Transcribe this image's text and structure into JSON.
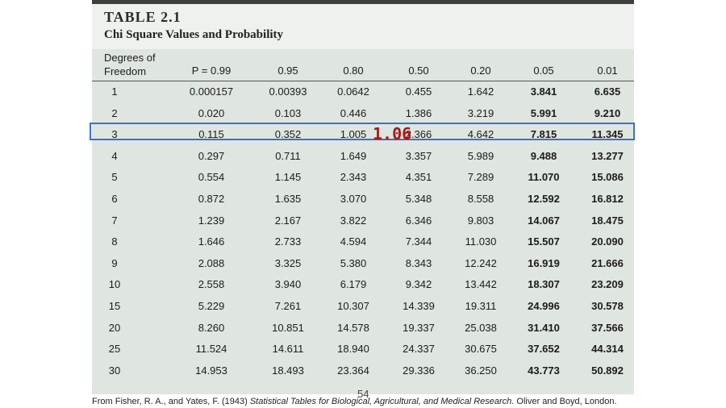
{
  "table": {
    "label": "TABLE 2.1",
    "caption": "Chi Square Values and Probability",
    "header": {
      "dof_line1": "Degrees of",
      "dof_line2": "Freedom",
      "probabilities": [
        "P = 0.99",
        "0.95",
        "0.80",
        "0.50",
        "0.20",
        "0.05",
        "0.01"
      ]
    },
    "rows": [
      {
        "df": "1",
        "values": [
          "0.000157",
          "0.00393",
          "0.0642",
          "0.455",
          "1.642",
          "3.841",
          "6.635"
        ]
      },
      {
        "df": "2",
        "values": [
          "0.020",
          "0.103",
          "0.446",
          "1.386",
          "3.219",
          "5.991",
          "9.210"
        ]
      },
      {
        "df": "3",
        "values": [
          "0.115",
          "0.352",
          "1.005",
          "2.366",
          "4.642",
          "7.815",
          "11.345"
        ]
      },
      {
        "df": "4",
        "values": [
          "0.297",
          "0.711",
          "1.649",
          "3.357",
          "5.989",
          "9.488",
          "13.277"
        ]
      },
      {
        "df": "5",
        "values": [
          "0.554",
          "1.145",
          "2.343",
          "4.351",
          "7.289",
          "11.070",
          "15.086"
        ]
      },
      {
        "df": "6",
        "values": [
          "0.872",
          "1.635",
          "3.070",
          "5.348",
          "8.558",
          "12.592",
          "16.812"
        ]
      },
      {
        "df": "7",
        "values": [
          "1.239",
          "2.167",
          "3.822",
          "6.346",
          "9.803",
          "14.067",
          "18.475"
        ]
      },
      {
        "df": "8",
        "values": [
          "1.646",
          "2.733",
          "4.594",
          "7.344",
          "11.030",
          "15.507",
          "20.090"
        ]
      },
      {
        "df": "9",
        "values": [
          "2.088",
          "3.325",
          "5.380",
          "8.343",
          "12.242",
          "16.919",
          "21.666"
        ]
      },
      {
        "df": "10",
        "values": [
          "2.558",
          "3.940",
          "6.179",
          "9.342",
          "13.442",
          "18.307",
          "23.209"
        ]
      },
      {
        "df": "15",
        "values": [
          "5.229",
          "7.261",
          "10.307",
          "14.339",
          "19.311",
          "24.996",
          "30.578"
        ]
      },
      {
        "df": "20",
        "values": [
          "8.260",
          "10.851",
          "14.578",
          "19.337",
          "25.038",
          "31.410",
          "37.566"
        ]
      },
      {
        "df": "25",
        "values": [
          "11.524",
          "14.611",
          "18.940",
          "24.337",
          "30.675",
          "37.652",
          "44.314"
        ]
      },
      {
        "df": "30",
        "values": [
          "14.953",
          "18.493",
          "23.364",
          "29.336",
          "36.250",
          "43.773",
          "50.892"
        ]
      }
    ],
    "bold_columns": [
      5,
      6
    ]
  },
  "annotation": {
    "value": "1.06",
    "highlighted_df": "3",
    "color": "#b01515",
    "box_color": "#3a6fd4"
  },
  "page_number": "54",
  "source": {
    "prefix": "From Fisher, R. A., and Yates, F. (1943) ",
    "title": "Statistical Tables for Biological, Agricultural, and Medical Research",
    "suffix": ". Oliver and Boyd, London."
  }
}
